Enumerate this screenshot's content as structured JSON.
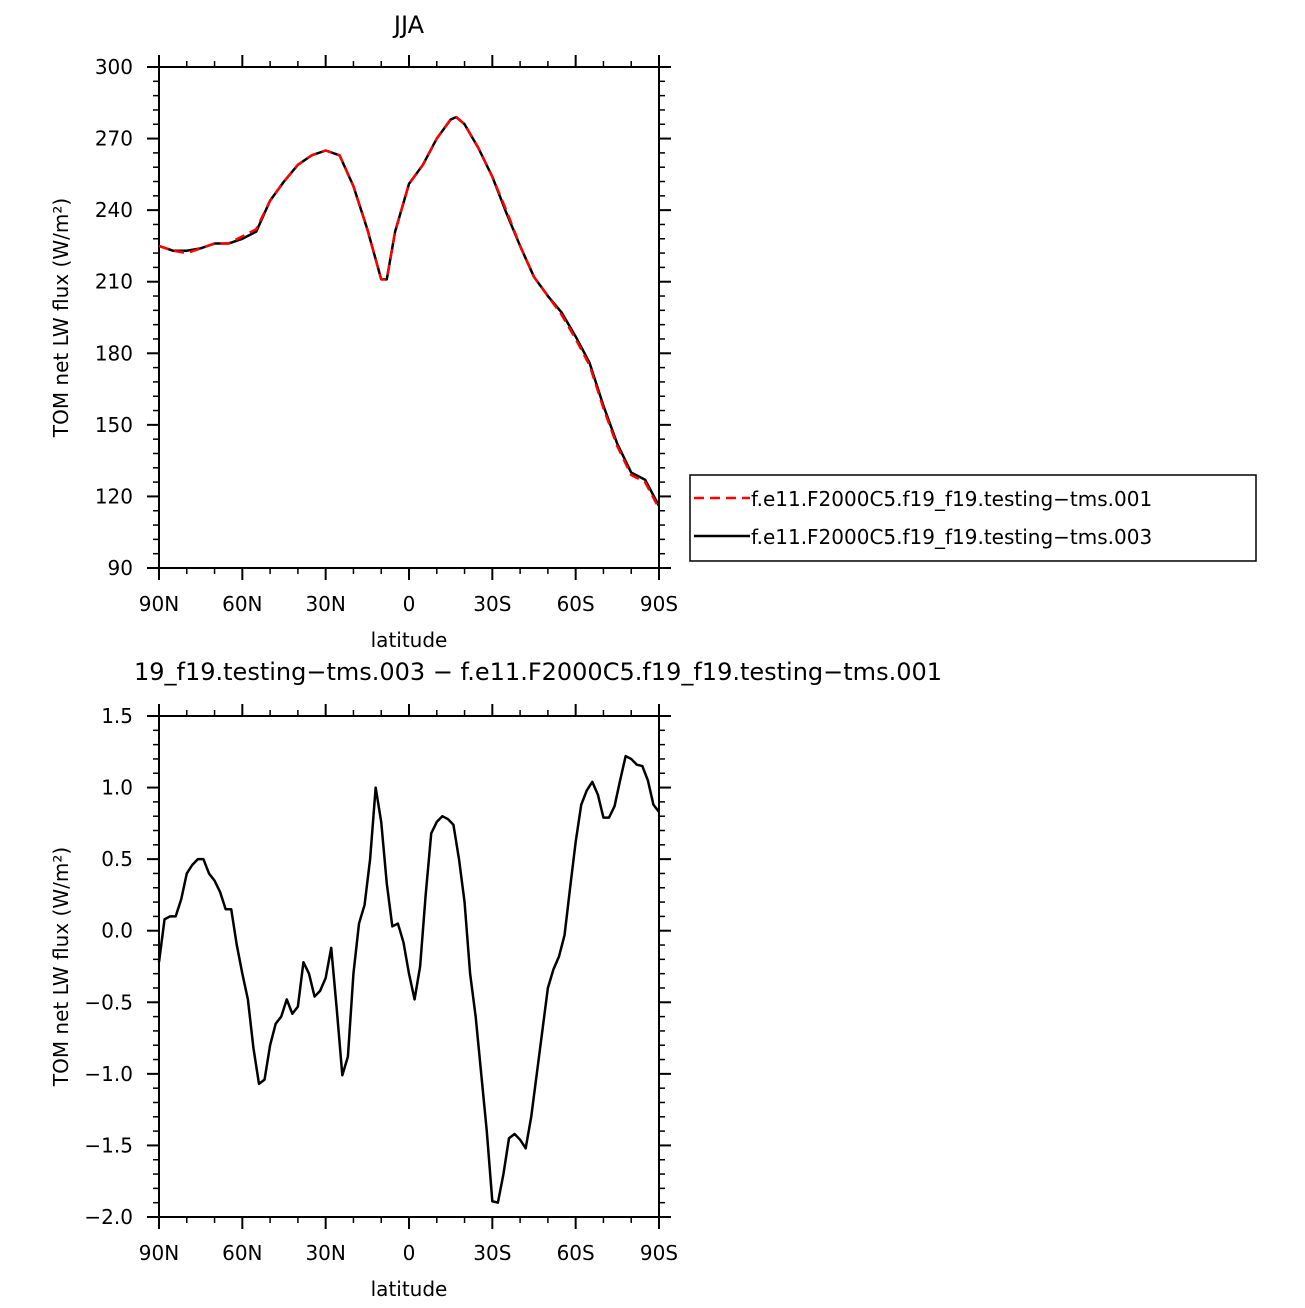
{
  "chart_data": [
    {
      "type": "line",
      "title": "JJA",
      "xlabel": "latitude",
      "ylabel": "TOM net LW flux (W/m²)",
      "xlim": [
        -90,
        90
      ],
      "ylim": [
        90,
        300
      ],
      "x_ticks": [
        "90N",
        "60N",
        "30N",
        "0",
        "30S",
        "60S",
        "90S"
      ],
      "y_ticks": [
        "90",
        "120",
        "150",
        "180",
        "210",
        "240",
        "270",
        "300"
      ],
      "legend_placement": "right",
      "series": [
        {
          "name": "f.e11.F2000C5.f19_f19.testing−tms.001",
          "color": "#ff0000",
          "dash": "dashed",
          "x": [
            -90,
            -85,
            -80,
            -75,
            -70,
            -65,
            -60,
            -55,
            -50,
            -45,
            -40,
            -35,
            -30,
            -25,
            -20,
            -15,
            -10,
            -8,
            -5,
            0,
            5,
            10,
            15,
            17,
            20,
            25,
            30,
            35,
            40,
            45,
            50,
            55,
            60,
            65,
            70,
            75,
            80,
            85,
            90
          ],
          "y": [
            225,
            223,
            222,
            224,
            226,
            226,
            229,
            232,
            244,
            252,
            259,
            263,
            265,
            263,
            250,
            232,
            211,
            211,
            231,
            251,
            259,
            270,
            278,
            279,
            276,
            266,
            254,
            240,
            225,
            212,
            204,
            196,
            186,
            175,
            157,
            141,
            129,
            126,
            115
          ]
        },
        {
          "name": "f.e11.F2000C5.f19_f19.testing−tms.003",
          "color": "#000000",
          "dash": "solid",
          "x": [
            -90,
            -85,
            -80,
            -75,
            -70,
            -65,
            -60,
            -55,
            -50,
            -45,
            -40,
            -35,
            -30,
            -25,
            -20,
            -15,
            -10,
            -8,
            -5,
            0,
            5,
            10,
            15,
            17,
            20,
            25,
            30,
            35,
            40,
            45,
            50,
            55,
            60,
            65,
            70,
            75,
            80,
            85,
            90
          ],
          "y": [
            225,
            223,
            223,
            224,
            226,
            226,
            228,
            231,
            244,
            252,
            259,
            263,
            265,
            263,
            250,
            232,
            211,
            211,
            231,
            251,
            259,
            270,
            278,
            279,
            276,
            266,
            254,
            239,
            225,
            212,
            204,
            197,
            187,
            176,
            158,
            142,
            130,
            127,
            116
          ]
        }
      ]
    },
    {
      "type": "line",
      "title": "19_f19.testing−tms.003 − f.e11.F2000C5.f19_f19.testing−tms.001",
      "xlabel": "latitude",
      "ylabel": "TOM net LW flux (W/m²)",
      "xlim": [
        -90,
        90
      ],
      "ylim": [
        -2.0,
        1.5
      ],
      "x_ticks": [
        "90N",
        "60N",
        "30N",
        "0",
        "30S",
        "60S",
        "90S"
      ],
      "y_ticks": [
        "−2.0",
        "−1.5",
        "−1.0",
        "−0.5",
        "0.0",
        "0.5",
        "1.0",
        "1.5"
      ],
      "series": [
        {
          "color": "#000000",
          "dash": "solid",
          "x": [
            -90,
            -88,
            -86,
            -84,
            -82,
            -80,
            -78,
            -76,
            -74,
            -72,
            -70,
            -68,
            -66,
            -64,
            -62,
            -60,
            -58,
            -56,
            -54,
            -52,
            -50,
            -48,
            -46,
            -44,
            -42,
            -40,
            -38,
            -36,
            -34,
            -32,
            -30,
            -28,
            -26,
            -24,
            -22,
            -20,
            -18,
            -16,
            -14,
            -12,
            -10,
            -8,
            -6,
            -4,
            -2,
            0,
            2,
            4,
            6,
            8,
            10,
            12,
            14,
            16,
            18,
            20,
            22,
            24,
            26,
            28,
            30,
            32,
            34,
            36,
            38,
            40,
            42,
            44,
            46,
            48,
            50,
            52,
            54,
            56,
            58,
            60,
            62,
            64,
            66,
            68,
            70,
            72,
            74,
            76,
            78,
            80,
            82,
            84,
            86,
            88,
            90
          ],
          "y": [
            -0.22,
            0.08,
            0.1,
            0.1,
            0.22,
            0.4,
            0.46,
            0.5,
            0.5,
            0.4,
            0.35,
            0.27,
            0.15,
            0.15,
            -0.1,
            -0.3,
            -0.48,
            -0.82,
            -1.07,
            -1.04,
            -0.8,
            -0.65,
            -0.6,
            -0.48,
            -0.58,
            -0.53,
            -0.22,
            -0.3,
            -0.46,
            -0.42,
            -0.33,
            -0.12,
            -0.55,
            -1.01,
            -0.88,
            -0.3,
            0.05,
            0.18,
            0.5,
            1.0,
            0.76,
            0.33,
            0.03,
            0.05,
            -0.08,
            -0.3,
            -0.48,
            -0.25,
            0.25,
            0.68,
            0.76,
            0.8,
            0.78,
            0.74,
            0.5,
            0.2,
            -0.3,
            -0.6,
            -1.0,
            -1.4,
            -1.89,
            -1.9,
            -1.7,
            -1.45,
            -1.42,
            -1.46,
            -1.52,
            -1.3,
            -1.0,
            -0.7,
            -0.4,
            -0.27,
            -0.18,
            -0.03,
            0.3,
            0.62,
            0.88,
            0.98,
            1.04,
            0.95,
            0.79,
            0.79,
            0.87,
            1.05,
            1.22,
            1.2,
            1.16,
            1.15,
            1.05,
            0.88,
            0.83
          ]
        }
      ]
    }
  ]
}
